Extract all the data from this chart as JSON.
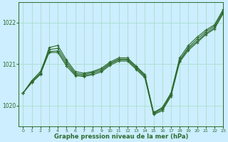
{
  "title": "Graphe pression niveau de la mer (hPa)",
  "background_color": "#cceeff",
  "grid_color": "#aaddcc",
  "line_color": "#2d6a2d",
  "ylim": [
    1019.5,
    1022.5
  ],
  "xlim": [
    -0.5,
    23
  ],
  "yticks": [
    1020,
    1021,
    1022
  ],
  "xticks": [
    0,
    1,
    2,
    3,
    4,
    5,
    6,
    7,
    8,
    9,
    10,
    11,
    12,
    13,
    14,
    15,
    16,
    17,
    18,
    19,
    20,
    21,
    22,
    23
  ],
  "series": [
    [
      1020.3,
      1020.55,
      1020.75,
      1021.4,
      1021.45,
      1021.1,
      1020.82,
      1020.78,
      1020.82,
      1020.9,
      1021.05,
      1021.15,
      1021.15,
      1020.95,
      1020.75,
      1019.83,
      1019.95,
      1020.3,
      1021.15,
      1021.45,
      1021.65,
      1021.82,
      1021.95,
      1022.32
    ],
    [
      1020.3,
      1020.6,
      1020.82,
      1021.35,
      1021.38,
      1021.05,
      1020.78,
      1020.75,
      1020.8,
      1020.87,
      1021.02,
      1021.12,
      1021.12,
      1020.93,
      1020.72,
      1019.82,
      1019.93,
      1020.27,
      1021.1,
      1021.4,
      1021.6,
      1021.78,
      1021.92,
      1022.28
    ],
    [
      1020.3,
      1020.58,
      1020.78,
      1021.3,
      1021.32,
      1021.0,
      1020.75,
      1020.72,
      1020.77,
      1020.84,
      1021.0,
      1021.1,
      1021.1,
      1020.9,
      1020.7,
      1019.8,
      1019.9,
      1020.25,
      1021.08,
      1021.37,
      1021.55,
      1021.74,
      1021.88,
      1022.25
    ],
    [
      1020.3,
      1020.56,
      1020.76,
      1021.28,
      1021.28,
      1020.95,
      1020.72,
      1020.7,
      1020.74,
      1020.81,
      1020.97,
      1021.07,
      1021.07,
      1020.87,
      1020.67,
      1019.78,
      1019.87,
      1020.22,
      1021.05,
      1021.33,
      1021.52,
      1021.71,
      1021.85,
      1022.22
    ]
  ]
}
